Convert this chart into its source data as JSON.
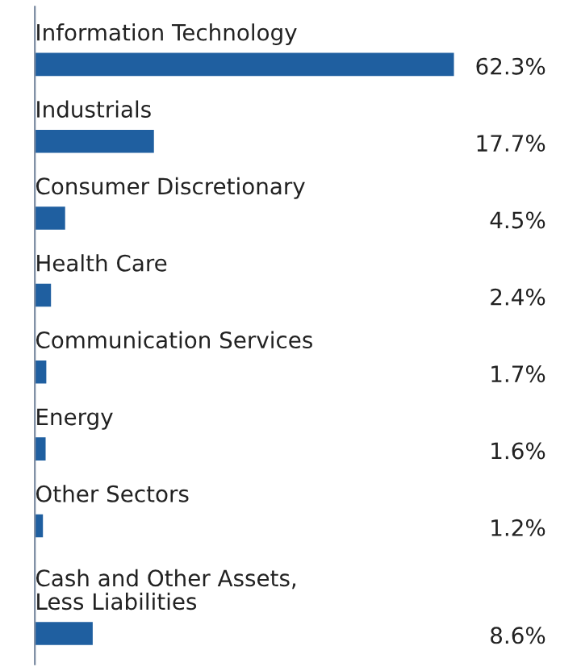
{
  "chart_data": {
    "type": "bar",
    "orientation": "horizontal",
    "data_labels": true,
    "categories": [
      "Information Technology",
      "Industrials",
      "Consumer Discretionary",
      "Health Care",
      "Communication Services",
      "Energy",
      "Other Sectors",
      "Cash and Other Assets,\nLess Liabilities"
    ],
    "values": [
      62.3,
      17.7,
      4.5,
      2.4,
      1.7,
      1.6,
      1.2,
      8.6
    ],
    "value_labels": [
      "62.3%",
      "17.7%",
      "4.5%",
      "2.4%",
      "1.7%",
      "1.6%",
      "1.2%",
      "8.6%"
    ],
    "color": "#1f5fa0"
  }
}
